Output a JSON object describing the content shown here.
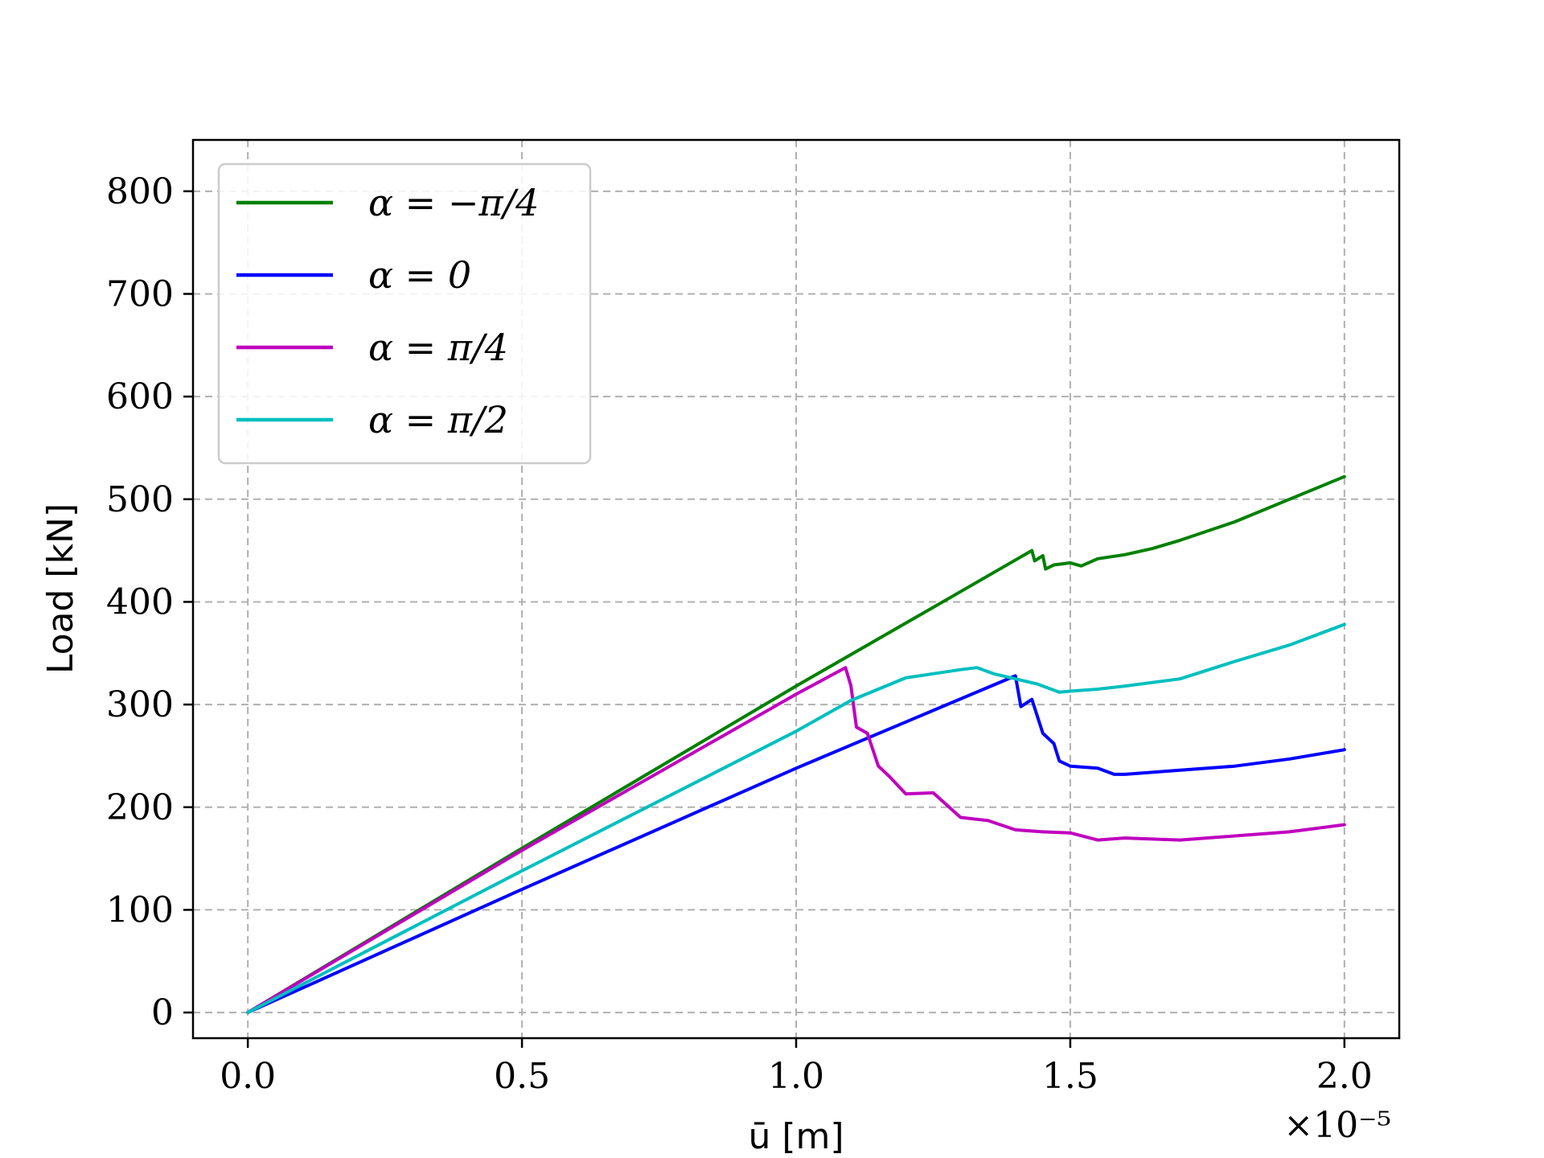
{
  "chart_data": {
    "type": "line",
    "xlabel": "ū [m]",
    "ylabel": "Load [kN]",
    "x_offset_label": "×10⁻⁵",
    "xlim": [
      -0.1,
      2.1
    ],
    "ylim": [
      -25,
      850
    ],
    "xticks": [
      0.0,
      0.5,
      1.0,
      1.5,
      2.0
    ],
    "xtick_labels": [
      "0.0",
      "0.5",
      "1.0",
      "1.5",
      "2.0"
    ],
    "yticks": [
      0,
      100,
      200,
      300,
      400,
      500,
      600,
      700,
      800
    ],
    "ytick_labels": [
      "0",
      "100",
      "200",
      "300",
      "400",
      "500",
      "600",
      "700",
      "800"
    ],
    "grid": true,
    "legend_position": "upper-left",
    "series": [
      {
        "name": "α = −π/4",
        "color": "#008000",
        "x": [
          0.0,
          0.5,
          1.0,
          1.3,
          1.43,
          1.435,
          1.45,
          1.455,
          1.47,
          1.5,
          1.52,
          1.55,
          1.6,
          1.65,
          1.7,
          1.8,
          1.9,
          2.0
        ],
        "y": [
          0,
          160,
          318,
          410,
          450,
          440,
          445,
          432,
          436,
          438,
          435,
          442,
          446,
          452,
          460,
          478,
          500,
          522
        ]
      },
      {
        "name": "α = 0",
        "color": "#0000ff",
        "x": [
          0.0,
          0.5,
          1.0,
          1.2,
          1.4,
          1.41,
          1.43,
          1.45,
          1.47,
          1.48,
          1.5,
          1.55,
          1.58,
          1.6,
          1.7,
          1.8,
          1.9,
          2.0
        ],
        "y": [
          0,
          120,
          238,
          283,
          328,
          298,
          305,
          272,
          262,
          245,
          240,
          238,
          232,
          232,
          236,
          240,
          247,
          256
        ]
      },
      {
        "name": "α = π/4",
        "color": "#bf00bf",
        "x": [
          0.0,
          0.5,
          1.0,
          1.09,
          1.1,
          1.11,
          1.13,
          1.15,
          1.17,
          1.2,
          1.25,
          1.3,
          1.35,
          1.4,
          1.45,
          1.5,
          1.55,
          1.6,
          1.7,
          1.8,
          1.9,
          2.0
        ],
        "y": [
          0,
          158,
          310,
          336,
          318,
          278,
          272,
          240,
          230,
          213,
          214,
          190,
          187,
          178,
          176,
          175,
          168,
          170,
          168,
          172,
          176,
          183
        ]
      },
      {
        "name": "α = π/2",
        "color": "#00bfbf",
        "x": [
          0.0,
          0.5,
          1.0,
          1.1,
          1.2,
          1.25,
          1.3,
          1.33,
          1.36,
          1.4,
          1.44,
          1.48,
          1.5,
          1.55,
          1.6,
          1.7,
          1.8,
          1.9,
          2.0
        ],
        "y": [
          0,
          138,
          274,
          304,
          326,
          330,
          334,
          336,
          330,
          325,
          320,
          312,
          313,
          315,
          318,
          325,
          342,
          358,
          378
        ]
      }
    ]
  }
}
